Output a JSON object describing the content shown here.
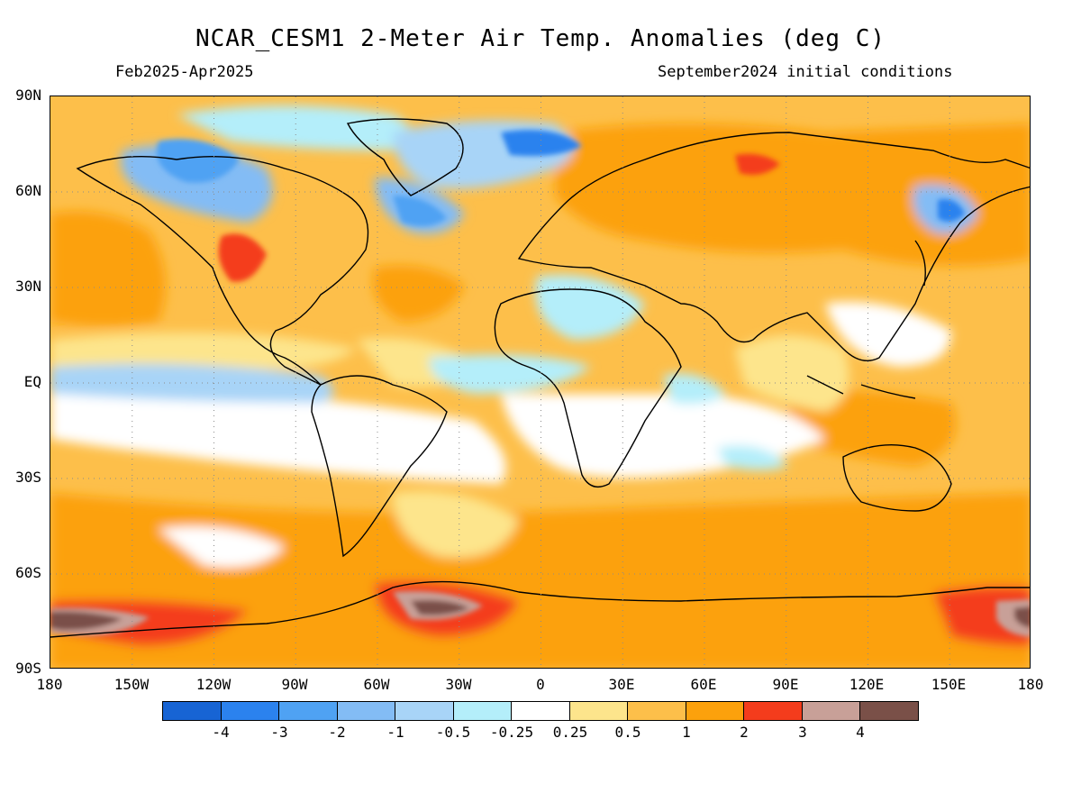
{
  "title": "NCAR_CESM1 2-Meter Air Temp. Anomalies (deg C)",
  "period": "Feb2025-Apr2025",
  "initial_conditions": "September2024 initial conditions",
  "lat_labels": [
    "90N",
    "60N",
    "30N",
    "EQ",
    "30S",
    "60S",
    "90S"
  ],
  "lon_labels": [
    "180",
    "150W",
    "120W",
    "90W",
    "60W",
    "30W",
    "0",
    "30E",
    "60E",
    "90E",
    "120E",
    "150E",
    "180"
  ],
  "colorbar": {
    "colors": [
      "#1764d4",
      "#2b82ee",
      "#4fa2f3",
      "#83bcf5",
      "#a8d4f7",
      "#b4eefa",
      "#ffffff",
      "#fde58c",
      "#fdbf4a",
      "#fca10c",
      "#f43c1c",
      "#c8a098",
      "#7a5048"
    ],
    "labels": [
      "-4",
      "-3",
      "-2",
      "-1",
      "-0.5",
      "-0.25",
      "0.25",
      "0.5",
      "1",
      "2",
      "3",
      "4"
    ]
  }
}
